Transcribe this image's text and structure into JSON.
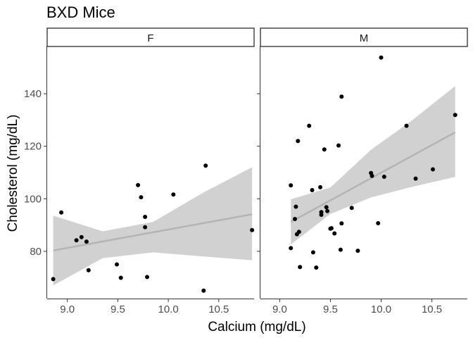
{
  "chart_data": {
    "type": "scatter",
    "title": "BXD Mice",
    "xlabel": "Calcium (mg/dL)",
    "ylabel": "Cholesterol (mg/dL)",
    "y_ticks": [
      80,
      100,
      120,
      140
    ],
    "ylim": [
      62,
      158
    ],
    "grid": false,
    "smoother": "linear fit with confidence band",
    "colors": {
      "points": "#000000",
      "fit_line": "#b3b3b3",
      "band": "#cccccc",
      "axis": "#333333"
    },
    "panels": [
      {
        "label": "F",
        "x_ticks": [
          "9.0",
          "9.5",
          "10.0",
          "10.5"
        ],
        "xlim": [
          8.8,
          10.85
        ],
        "points": [
          [
            8.86,
            69.4
          ],
          [
            8.94,
            94.8
          ],
          [
            9.09,
            84.2
          ],
          [
            9.14,
            85.4
          ],
          [
            9.19,
            83.7
          ],
          [
            9.21,
            72.8
          ],
          [
            9.49,
            75.0
          ],
          [
            9.53,
            69.9
          ],
          [
            9.7,
            105.2
          ],
          [
            9.73,
            100.6
          ],
          [
            9.77,
            93.1
          ],
          [
            9.77,
            89.2
          ],
          [
            9.79,
            70.2
          ],
          [
            10.05,
            101.6
          ],
          [
            10.35,
            65.0
          ],
          [
            10.37,
            112.6
          ],
          [
            10.83,
            88.1
          ]
        ],
        "fit": {
          "x": [
            8.86,
            10.83
          ],
          "y": [
            80.3,
            94.1
          ]
        },
        "band": {
          "x": [
            8.86,
            9.35,
            9.85,
            10.35,
            10.83
          ],
          "lower": [
            67.0,
            77.4,
            79.6,
            78.0,
            76.6
          ],
          "upper": [
            93.6,
            87.6,
            91.2,
            102.4,
            112.0
          ]
        }
      },
      {
        "label": "M",
        "x_ticks": [
          "9.0",
          "9.5",
          "10.0",
          "10.5"
        ],
        "xlim": [
          8.81,
          10.85
        ],
        "points": [
          [
            9.11,
            105.1
          ],
          [
            9.11,
            81.2
          ],
          [
            9.15,
            92.3
          ],
          [
            9.16,
            97.0
          ],
          [
            9.17,
            86.5
          ],
          [
            9.18,
            122.0
          ],
          [
            9.19,
            87.4
          ],
          [
            9.2,
            74.0
          ],
          [
            9.29,
            127.8
          ],
          [
            9.32,
            103.3
          ],
          [
            9.33,
            79.6
          ],
          [
            9.36,
            73.8
          ],
          [
            9.4,
            104.4
          ],
          [
            9.41,
            93.9
          ],
          [
            9.41,
            94.9
          ],
          [
            9.44,
            118.8
          ],
          [
            9.46,
            96.8
          ],
          [
            9.47,
            95.3
          ],
          [
            9.5,
            88.6
          ],
          [
            9.51,
            88.8
          ],
          [
            9.54,
            86.8
          ],
          [
            9.58,
            120.3
          ],
          [
            9.6,
            80.6
          ],
          [
            9.61,
            90.6
          ],
          [
            9.61,
            138.9
          ],
          [
            9.71,
            96.5
          ],
          [
            9.77,
            80.2
          ],
          [
            9.9,
            109.8
          ],
          [
            9.91,
            108.7
          ],
          [
            9.97,
            90.7
          ],
          [
            10.0,
            153.8
          ],
          [
            10.03,
            108.4
          ],
          [
            10.25,
            127.8
          ],
          [
            10.34,
            107.7
          ],
          [
            10.51,
            111.2
          ],
          [
            10.73,
            131.9
          ]
        ],
        "fit": {
          "x": [
            9.11,
            10.73
          ],
          "y": [
            91.2,
            125.3
          ]
        },
        "band": {
          "x": [
            9.11,
            9.5,
            9.9,
            10.3,
            10.73
          ],
          "lower": [
            82.6,
            94.2,
            100.5,
            104.5,
            108.3
          ],
          "upper": [
            99.8,
            104.3,
            118.7,
            129.7,
            142.9
          ]
        }
      }
    ]
  }
}
